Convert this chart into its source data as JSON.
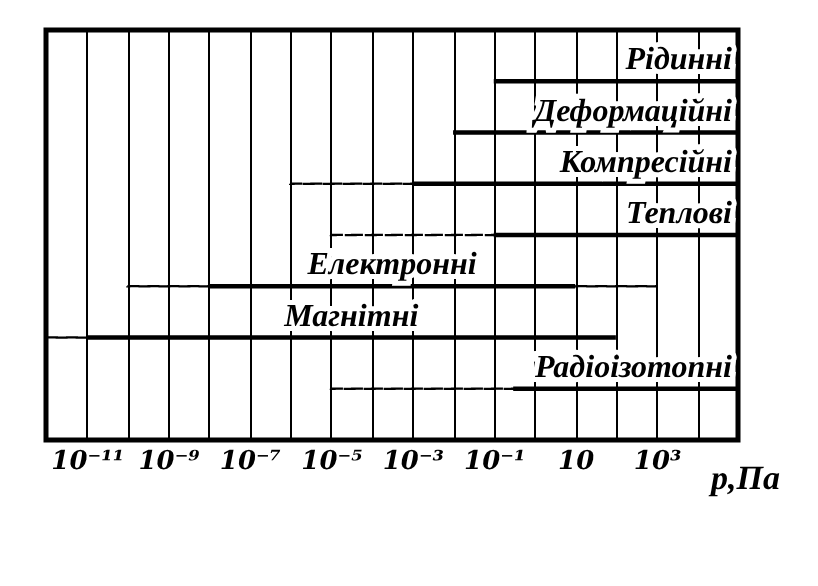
{
  "chart_data": {
    "type": "bar",
    "orientation": "horizontal",
    "log": "x",
    "grid": "x",
    "tick_labels": "x",
    "xlabel": "p,Па",
    "categories": [
      "Рідинні",
      "Деформаційні",
      "Компресійні",
      "Теплові",
      "Електронні",
      "Магнітні",
      "Радіоізотопні"
    ],
    "xlim": [
      1e-12,
      100000
    ],
    "xticks": [
      {
        "value": 1e-11,
        "label": "10⁻¹¹"
      },
      {
        "value": 1e-10,
        "label": null
      },
      {
        "value": 1e-09,
        "label": "10⁻⁹"
      },
      {
        "value": 1e-08,
        "label": null
      },
      {
        "value": 1e-07,
        "label": "10⁻⁷"
      },
      {
        "value": 1e-06,
        "label": null
      },
      {
        "value": 1e-05,
        "label": "10⁻⁵"
      },
      {
        "value": 0.0001,
        "label": null
      },
      {
        "value": 0.001,
        "label": "10⁻³"
      },
      {
        "value": 0.01,
        "label": null
      },
      {
        "value": 0.1,
        "label": "10⁻¹"
      },
      {
        "value": 1,
        "label": null
      },
      10,
      {
        "value": 100,
        "label": null
      },
      {
        "value": 1000,
        "label": "10³"
      },
      {
        "value": 10000,
        "label": null
      }
    ],
    "series": [
      {
        "color": "#000000",
        "line_style": "solid",
        "base": [
          0.1,
          0.01,
          0.001,
          0.1,
          1e-08,
          1e-11,
          0.3
        ],
        "values": [
          99999.9,
          99999.99,
          99999.999,
          99999.9,
          9.99999999,
          99.99999999999,
          99999.7
        ]
      },
      {
        "color": "#000000",
        "line_style": "dashed",
        "base": [
          null,
          null,
          1e-06,
          1e-05,
          1e-10,
          1e-12,
          1e-05
        ],
        "values": [
          null,
          null,
          0.000999,
          0.09999,
          9.9e-09,
          9e-12,
          0.29999
        ]
      },
      {
        "color": "#000000",
        "line_style": "dashed",
        "base": [
          null,
          null,
          null,
          null,
          10,
          null,
          null
        ],
        "values": [
          null,
          null,
          null,
          null,
          990,
          null,
          null
        ]
      }
    ]
  }
}
